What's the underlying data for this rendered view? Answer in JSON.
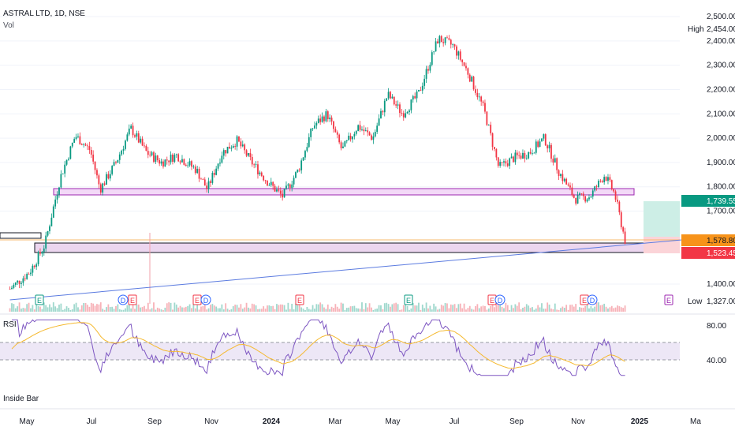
{
  "header": {
    "title": "ASTRAL LTD, 1D, NSE",
    "volume_label": "Vol"
  },
  "indicators": {
    "rsi_label": "RSI",
    "inside_bar_label": "Inside Bar"
  },
  "price_axis": {
    "ticks": [
      "2,500.00",
      "2,400.00",
      "2,300.00",
      "2,200.00",
      "2,100.00",
      "2,000.00",
      "1,900.00",
      "1,800.00",
      "1,700.00",
      "1,400.00"
    ],
    "high_label": "High",
    "high_value": "2,454.00",
    "low_label": "Low",
    "low_value": "1,327.00",
    "badge_target": "1,739.55",
    "badge_last": "1,578.80",
    "badge_stop": "1,523.45",
    "colors": {
      "target": "#089981",
      "last": "#f7931a",
      "stop": "#f23645"
    }
  },
  "rsi_axis": {
    "ticks": [
      "80.00",
      "40.00"
    ]
  },
  "time_axis": {
    "labels": [
      "May",
      "Jul",
      "Sep",
      "Nov",
      "2024",
      "Mar",
      "May",
      "Jul",
      "Sep",
      "Nov",
      "2025",
      "Ma"
    ]
  },
  "event_markers": [
    {
      "glyph": "E",
      "kind": "earnings"
    },
    {
      "glyph": "D",
      "kind": "dividend"
    },
    {
      "glyph": "E",
      "kind": "earnings"
    },
    {
      "glyph": "E",
      "kind": "earnings"
    },
    {
      "glyph": "D",
      "kind": "dividend"
    },
    {
      "glyph": "E",
      "kind": "earnings"
    },
    {
      "glyph": "E",
      "kind": "earnings"
    },
    {
      "glyph": "E",
      "kind": "earnings"
    },
    {
      "glyph": "D",
      "kind": "dividend"
    },
    {
      "glyph": "E",
      "kind": "earnings"
    },
    {
      "glyph": "D",
      "kind": "dividend"
    },
    {
      "glyph": "E",
      "kind": "earnings"
    }
  ],
  "chart_data": {
    "type": "candlestick",
    "title": "ASTRAL LTD, 1D, NSE",
    "ylim": [
      1327,
      2454
    ],
    "rsi_levels": [
      70,
      30
    ],
    "support_zone": [
      1775,
      1795
    ],
    "demand_zone": [
      1520,
      1560
    ],
    "close_series": [
      {
        "x": "2023-04-20",
        "y": 1380
      },
      {
        "x": "2023-05-10",
        "y": 1450
      },
      {
        "x": "2023-05-25",
        "y": 1560
      },
      {
        "x": "2023-06-10",
        "y": 1840
      },
      {
        "x": "2023-06-25",
        "y": 2010
      },
      {
        "x": "2023-07-10",
        "y": 1950
      },
      {
        "x": "2023-07-20",
        "y": 1790
      },
      {
        "x": "2023-08-05",
        "y": 1900
      },
      {
        "x": "2023-08-20",
        "y": 2040
      },
      {
        "x": "2023-09-05",
        "y": 1940
      },
      {
        "x": "2023-09-20",
        "y": 1900
      },
      {
        "x": "2023-10-05",
        "y": 1930
      },
      {
        "x": "2023-10-25",
        "y": 1870
      },
      {
        "x": "2023-11-05",
        "y": 1790
      },
      {
        "x": "2023-11-20",
        "y": 1940
      },
      {
        "x": "2023-12-05",
        "y": 1990
      },
      {
        "x": "2023-12-20",
        "y": 1900
      },
      {
        "x": "2024-01-05",
        "y": 1820
      },
      {
        "x": "2024-01-20",
        "y": 1760
      },
      {
        "x": "2024-02-05",
        "y": 1870
      },
      {
        "x": "2024-02-20",
        "y": 2050
      },
      {
        "x": "2024-03-05",
        "y": 2100
      },
      {
        "x": "2024-03-20",
        "y": 1950
      },
      {
        "x": "2024-04-05",
        "y": 2050
      },
      {
        "x": "2024-04-20",
        "y": 2000
      },
      {
        "x": "2024-05-05",
        "y": 2180
      },
      {
        "x": "2024-05-20",
        "y": 2100
      },
      {
        "x": "2024-06-05",
        "y": 2180
      },
      {
        "x": "2024-06-25",
        "y": 2410
      },
      {
        "x": "2024-07-10",
        "y": 2380
      },
      {
        "x": "2024-07-25",
        "y": 2270
      },
      {
        "x": "2024-08-10",
        "y": 2120
      },
      {
        "x": "2024-08-25",
        "y": 1880
      },
      {
        "x": "2024-09-10",
        "y": 1920
      },
      {
        "x": "2024-09-25",
        "y": 1940
      },
      {
        "x": "2024-10-10",
        "y": 2000
      },
      {
        "x": "2024-10-25",
        "y": 1860
      },
      {
        "x": "2024-11-10",
        "y": 1750
      },
      {
        "x": "2024-11-25",
        "y": 1760
      },
      {
        "x": "2024-12-10",
        "y": 1850
      },
      {
        "x": "2024-12-20",
        "y": 1770
      },
      {
        "x": "2024-12-31",
        "y": 1570
      }
    ],
    "trendline": [
      {
        "x": "2023-04-20",
        "y": 1327
      },
      {
        "x": "2025-03-01",
        "y": 1590
      }
    ]
  }
}
